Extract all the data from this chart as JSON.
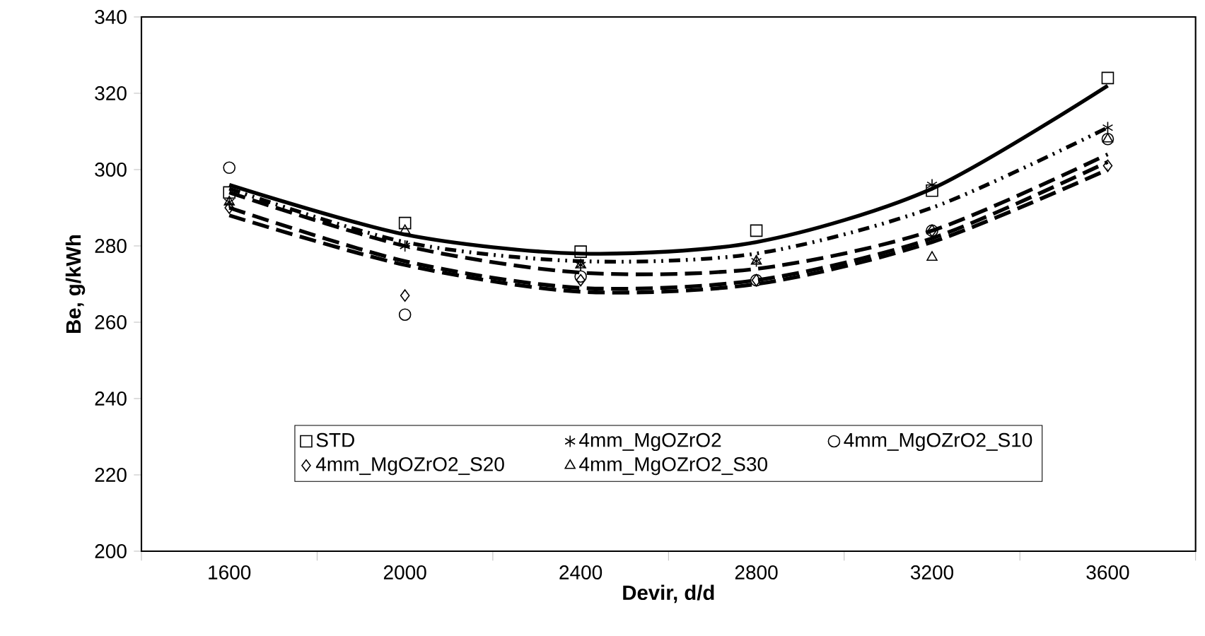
{
  "chart_data": {
    "type": "scatter",
    "xlabel": "Devir, d/d",
    "ylabel": "Be, g/kWh",
    "x": [
      1600,
      2000,
      2400,
      2800,
      3200,
      3600
    ],
    "xlim": [
      1400,
      3800
    ],
    "ylim": [
      200,
      340
    ],
    "xticks": [
      {
        "value": 1400,
        "label": null
      },
      1600,
      {
        "value": 1800,
        "label": null
      },
      2000,
      {
        "value": 2200,
        "label": null
      },
      2400,
      {
        "value": 2600,
        "label": null
      },
      2800,
      {
        "value": 3000,
        "label": null
      },
      3200,
      {
        "value": 3400,
        "label": null
      },
      3600,
      {
        "value": 3800,
        "label": null
      }
    ],
    "yticks": [
      200,
      220,
      240,
      260,
      280,
      300,
      320,
      340
    ],
    "grid": false,
    "legend": "bottom",
    "series": [
      {
        "name": "STD",
        "color": "#000000",
        "marker": "square",
        "values": [
          294,
          286,
          278.5,
          284,
          294.5,
          324
        ]
      },
      {
        "name": "4mm_MgOZrO2",
        "color": "#000000",
        "marker": "cross",
        "values": [
          291.5,
          280,
          275,
          276,
          296,
          311
        ]
      },
      {
        "name": "4mm_MgOZrO2_S10",
        "color": "#000000",
        "marker": "circle",
        "values": [
          300.5,
          262,
          272,
          271,
          284,
          308
        ]
      },
      {
        "name": "4mm_MgOZrO2_S20",
        "color": "#000000",
        "marker": "diamond",
        "values": [
          290,
          267,
          271,
          271,
          284,
          301
        ]
      },
      {
        "name": "4mm_MgOZrO2_S30",
        "color": "#000000",
        "marker": "triangle",
        "values": [
          291.5,
          284,
          275,
          276,
          277,
          308
        ]
      },
      {
        "type": "line",
        "color": "#000000",
        "marker": "none",
        "line_style": "solid",
        "values": [
          296,
          283,
          278,
          281,
          295,
          322
        ]
      },
      {
        "type": "line",
        "color": "#000000",
        "marker": "none",
        "line_style": "dotted",
        "values": [
          295,
          281,
          276,
          278,
          290,
          311
        ]
      },
      {
        "type": "line",
        "color": "#000000",
        "marker": "none",
        "line_style": "dashed",
        "values": [
          294,
          280,
          273,
          274,
          284,
          304
        ]
      },
      {
        "type": "line",
        "color": "#000000",
        "marker": "none",
        "line_style": "dashed",
        "values": [
          290,
          276,
          269,
          271,
          282,
          302
        ]
      },
      {
        "type": "line",
        "color": "#000000",
        "marker": "none",
        "line_style": "dashed",
        "values": [
          288,
          275,
          268,
          270,
          281,
          300
        ]
      }
    ]
  }
}
